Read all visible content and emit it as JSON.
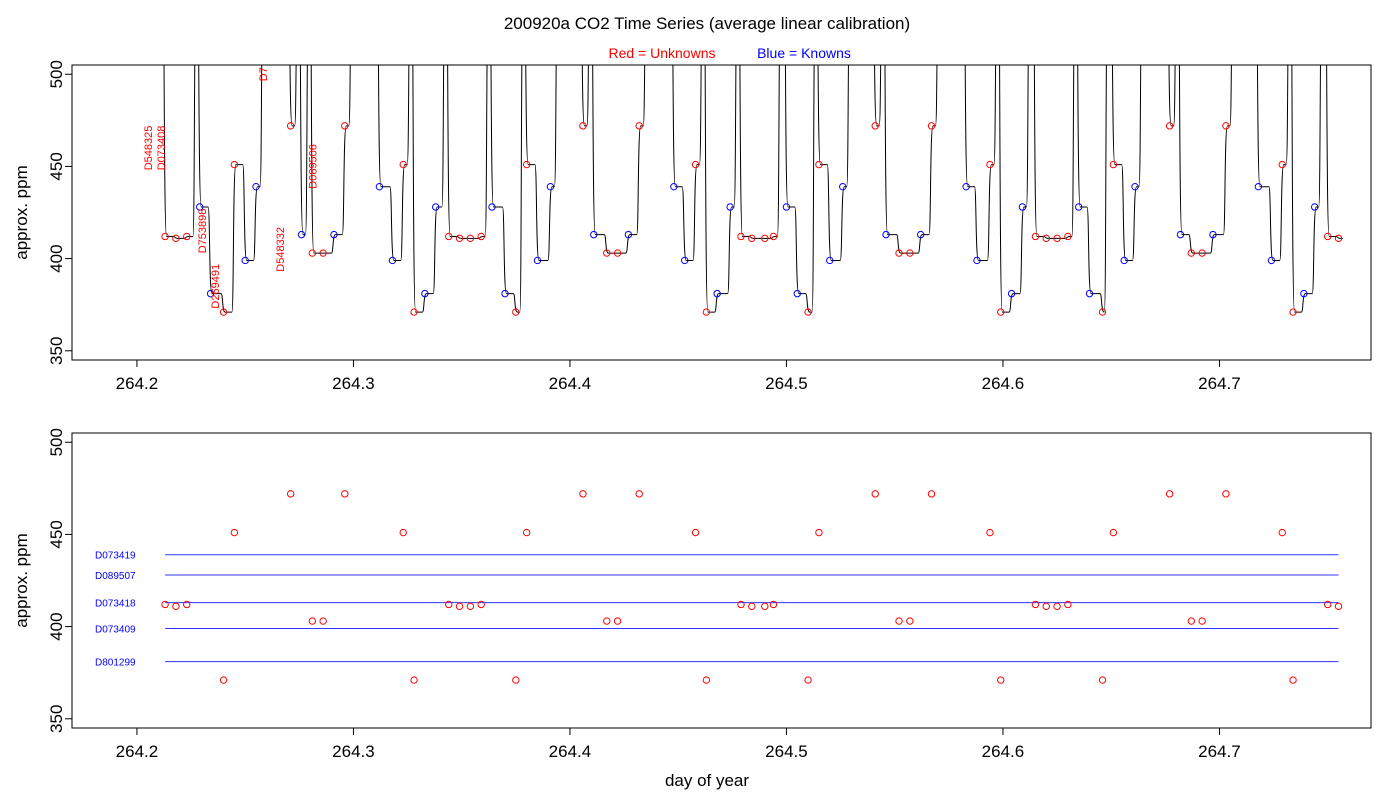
{
  "figure": {
    "title": "200920a   CO2 Time Series (average linear calibration)",
    "legend_red": "Red = Unknowns",
    "legend_blue": "Blue = Knowns",
    "xlabel": "day of year"
  },
  "colors": {
    "unknown": "#ff0000",
    "known": "#0000ff",
    "trace": "#000000",
    "ref_line": "#3333ff"
  },
  "chart_data": [
    {
      "type": "line",
      "panel": "top",
      "ylabel": "approx. ppm",
      "xlim": [
        264.17,
        264.77
      ],
      "ylim": [
        345,
        505
      ],
      "x_ticks": [
        264.2,
        264.3,
        264.4,
        264.5,
        264.6,
        264.7
      ],
      "x_tick_labels": [
        "264.2",
        "264.3",
        "264.4",
        "264.5",
        "264.6",
        "264.7"
      ],
      "y_ticks": [
        350,
        400,
        450,
        500
      ],
      "y_tick_labels": [
        "350",
        "400",
        "450",
        "500"
      ],
      "grid": false,
      "legend": "top-center",
      "series": [
        {
          "name": "Unknowns",
          "color": "#ff0000",
          "marker": "open-circle",
          "points": [
            [
              264.213,
              412
            ],
            [
              264.218,
              411
            ],
            [
              264.223,
              412
            ],
            [
              264.24,
              371
            ],
            [
              264.245,
              451
            ],
            [
              264.271,
              472
            ],
            [
              264.281,
              403
            ],
            [
              264.286,
              403
            ],
            [
              264.296,
              472
            ],
            [
              264.323,
              451
            ],
            [
              264.328,
              371
            ],
            [
              264.344,
              412
            ],
            [
              264.349,
              411
            ],
            [
              264.354,
              411
            ],
            [
              264.359,
              412
            ],
            [
              264.375,
              371
            ],
            [
              264.38,
              451
            ],
            [
              264.406,
              472
            ],
            [
              264.417,
              403
            ],
            [
              264.422,
              403
            ],
            [
              264.432,
              472
            ],
            [
              264.458,
              451
            ],
            [
              264.463,
              371
            ],
            [
              264.479,
              412
            ],
            [
              264.484,
              411
            ],
            [
              264.49,
              411
            ],
            [
              264.494,
              412
            ],
            [
              264.51,
              371
            ],
            [
              264.515,
              451
            ],
            [
              264.541,
              472
            ],
            [
              264.552,
              403
            ],
            [
              264.557,
              403
            ],
            [
              264.567,
              472
            ],
            [
              264.594,
              451
            ],
            [
              264.599,
              371
            ],
            [
              264.615,
              412
            ],
            [
              264.62,
              411
            ],
            [
              264.625,
              411
            ],
            [
              264.63,
              412
            ],
            [
              264.646,
              371
            ],
            [
              264.651,
              451
            ],
            [
              264.677,
              472
            ],
            [
              264.687,
              403
            ],
            [
              264.692,
              403
            ],
            [
              264.703,
              472
            ],
            [
              264.729,
              451
            ],
            [
              264.734,
              371
            ],
            [
              264.75,
              412
            ],
            [
              264.755,
              411
            ]
          ]
        },
        {
          "name": "Knowns",
          "color": "#0000ff",
          "marker": "open-circle",
          "points": [
            [
              264.229,
              428
            ],
            [
              264.234,
              381
            ],
            [
              264.25,
              399
            ],
            [
              264.255,
              439
            ],
            [
              264.276,
              413
            ],
            [
              264.291,
              413
            ],
            [
              264.312,
              439
            ],
            [
              264.318,
              399
            ],
            [
              264.333,
              381
            ],
            [
              264.338,
              428
            ],
            [
              264.364,
              428
            ],
            [
              264.37,
              381
            ],
            [
              264.385,
              399
            ],
            [
              264.391,
              439
            ],
            [
              264.411,
              413
            ],
            [
              264.427,
              413
            ],
            [
              264.448,
              439
            ],
            [
              264.453,
              399
            ],
            [
              264.468,
              381
            ],
            [
              264.474,
              428
            ],
            [
              264.5,
              428
            ],
            [
              264.505,
              381
            ],
            [
              264.52,
              399
            ],
            [
              264.526,
              439
            ],
            [
              264.546,
              413
            ],
            [
              264.562,
              413
            ],
            [
              264.583,
              439
            ],
            [
              264.588,
              399
            ],
            [
              264.604,
              381
            ],
            [
              264.609,
              428
            ],
            [
              264.635,
              428
            ],
            [
              264.64,
              381
            ],
            [
              264.656,
              399
            ],
            [
              264.661,
              439
            ],
            [
              264.682,
              413
            ],
            [
              264.697,
              413
            ],
            [
              264.718,
              439
            ],
            [
              264.724,
              399
            ],
            [
              264.739,
              381
            ],
            [
              264.744,
              428
            ]
          ]
        }
      ],
      "trace_gaps": [
        [
          264.211,
          264.227,
          264.258
        ],
        [
          264.274,
          264.279,
          264.299
        ],
        [
          264.31,
          264.326,
          264.342
        ],
        [
          264.362,
          264.378,
          264.394
        ],
        [
          264.404,
          264.409,
          264.435
        ],
        [
          264.446,
          264.461,
          264.477
        ],
        [
          264.497,
          264.513,
          264.529
        ],
        [
          264.539,
          264.544,
          264.57
        ],
        [
          264.581,
          264.597,
          264.612
        ],
        [
          264.633,
          264.648,
          264.664
        ],
        [
          264.674,
          264.68,
          264.706
        ],
        [
          264.716,
          264.732,
          264.747
        ]
      ],
      "annotations": [
        {
          "text": "D548325",
          "x": 264.207,
          "y": 460
        },
        {
          "text": "D073408",
          "x": 264.213,
          "y": 460
        },
        {
          "text": "D753898",
          "x": 264.232,
          "y": 415
        },
        {
          "text": "D269491",
          "x": 264.238,
          "y": 385
        },
        {
          "text": "D7",
          "x": 264.26,
          "y": 500
        },
        {
          "text": "D548332",
          "x": 264.268,
          "y": 405
        },
        {
          "text": "D089506",
          "x": 264.283,
          "y": 450
        }
      ]
    },
    {
      "type": "scatter",
      "panel": "bottom",
      "ylabel": "approx. ppm",
      "xlim": [
        264.17,
        264.77
      ],
      "ylim": [
        345,
        505
      ],
      "x_ticks": [
        264.2,
        264.3,
        264.4,
        264.5,
        264.6,
        264.7
      ],
      "x_tick_labels": [
        "264.2",
        "264.3",
        "264.4",
        "264.5",
        "264.6",
        "264.7"
      ],
      "y_ticks": [
        350,
        400,
        450,
        500
      ],
      "y_tick_labels": [
        "350",
        "400",
        "450",
        "500"
      ],
      "grid": false,
      "reference_lines": [
        {
          "label": "D073419",
          "y": 439
        },
        {
          "label": "D089507",
          "y": 428
        },
        {
          "label": "D073418",
          "y": 413
        },
        {
          "label": "D073409",
          "y": 399
        },
        {
          "label": "D801299",
          "y": 381
        }
      ],
      "reference_x_range": [
        264.213,
        264.755
      ]
    }
  ]
}
